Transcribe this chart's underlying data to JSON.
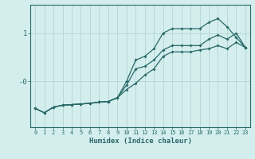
{
  "xlabel": "Humidex (Indice chaleur)",
  "x_values": [
    0,
    1,
    2,
    3,
    4,
    5,
    6,
    7,
    8,
    9,
    10,
    11,
    12,
    13,
    14,
    15,
    16,
    17,
    18,
    19,
    20,
    21,
    22,
    23
  ],
  "line1_y": [
    -0.55,
    -0.62,
    -0.53,
    -0.5,
    -0.49,
    -0.48,
    -0.47,
    -0.45,
    -0.44,
    -0.38,
    -0.25,
    -0.15,
    -0.02,
    0.08,
    0.28,
    0.35,
    0.35,
    0.35,
    0.38,
    0.4,
    0.45,
    0.4,
    0.5,
    0.42
  ],
  "line2_y": [
    -0.55,
    -0.62,
    -0.53,
    -0.5,
    -0.49,
    -0.48,
    -0.47,
    -0.45,
    -0.44,
    -0.38,
    -0.18,
    0.08,
    0.12,
    0.22,
    0.38,
    0.45,
    0.45,
    0.45,
    0.45,
    0.55,
    0.62,
    0.55,
    0.65,
    0.42
  ],
  "line3_y": [
    -0.55,
    -0.62,
    -0.53,
    -0.5,
    -0.49,
    -0.48,
    -0.47,
    -0.45,
    -0.44,
    -0.38,
    -0.12,
    0.22,
    0.28,
    0.4,
    0.65,
    0.72,
    0.72,
    0.72,
    0.72,
    0.82,
    0.88,
    0.75,
    0.58,
    0.42
  ],
  "bg_color": "#d4eeee",
  "line_color": "#2a6868",
  "grid_color": "#b8d8d8",
  "ytick_labels": [
    "1",
    "-0"
  ],
  "ytick_positions": [
    0.65,
    -0.12
  ],
  "xlim": [
    -0.5,
    23.5
  ],
  "ylim": [
    -0.85,
    1.1
  ]
}
